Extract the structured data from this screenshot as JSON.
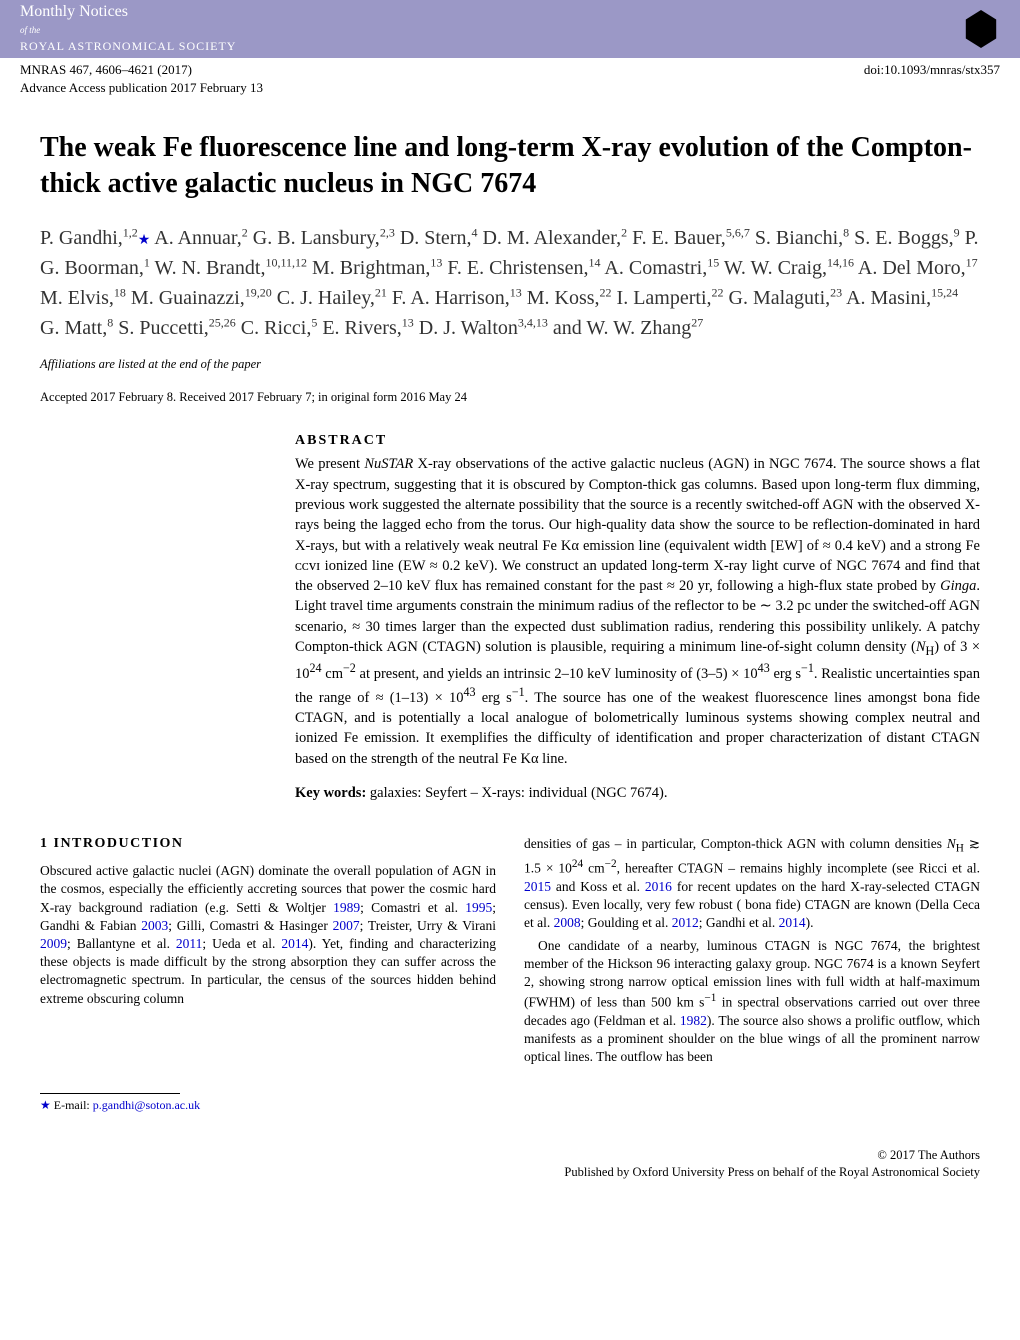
{
  "header": {
    "journal_main": "Monthly Notices",
    "journal_of": "of the",
    "journal_sub": "ROYAL ASTRONOMICAL SOCIETY",
    "pub_left": "MNRAS 467, 4606–4621 (2017)",
    "pub_doi": "doi:10.1093/mnras/stx357",
    "advance": "Advance Access publication 2017 February 13"
  },
  "title": "The weak Fe fluorescence line and long-term X-ray evolution of the Compton-thick active galactic nucleus in NGC 7674",
  "authors_html": "P. Gandhi,<sup>1,2</sup><span class='star'>★</span> A. Annuar,<sup>2</sup> G. B. Lansbury,<sup>2,3</sup> D. Stern,<sup>4</sup> D. M. Alexander,<sup>2</sup> F. E. Bauer,<sup>5,6,7</sup> S. Bianchi,<sup>8</sup> S. E. Boggs,<sup>9</sup> P. G. Boorman,<sup>1</sup> W. N. Brandt,<sup>10,11,12</sup> M. Brightman,<sup>13</sup> F. E. Christensen,<sup>14</sup> A. Comastri,<sup>15</sup> W. W. Craig,<sup>14,16</sup> A. Del Moro,<sup>17</sup> M. Elvis,<sup>18</sup> M. Guainazzi,<sup>19,20</sup> C. J. Hailey,<sup>21</sup> F. A. Harrison,<sup>13</sup> M. Koss,<sup>22</sup> I. Lamperti,<sup>22</sup> G. Malaguti,<sup>23</sup> A. Masini,<sup>15,24</sup> G. Matt,<sup>8</sup> S. Puccetti,<sup>25,26</sup> C. Ricci,<sup>5</sup> E. Rivers,<sup>13</sup> D. J. Walton<sup>3,4,13</sup> and W. W. Zhang<sup>27</sup>",
  "affil_note": "Affiliations are listed at the end of the paper",
  "accepted": "Accepted 2017 February 8. Received 2017 February 7; in original form 2016 May 24",
  "abstract": {
    "heading": "ABSTRACT",
    "body": "We present <i>NuSTAR</i> X-ray observations of the active galactic nucleus (AGN) in NGC 7674. The source shows a flat X-ray spectrum, suggesting that it is obscured by Compton-thick gas columns. Based upon long-term flux dimming, previous work suggested the alternate possibility that the source is a recently switched-off AGN with the observed X-rays being the lagged echo from the torus. Our high-quality data show the source to be reflection-dominated in hard X-rays, but with a relatively weak neutral Fe Kα emission line (equivalent width [EW] of ≈ 0.4 keV) and a strong Fe ᴄᴄᴠɪ ionized line (EW ≈ 0.2 keV). We construct an updated long-term X-ray light curve of NGC 7674 and find that the observed 2–10 keV flux has remained constant for the past ≈ 20 yr, following a high-flux state probed by <i>Ginga</i>. Light travel time arguments constrain the minimum radius of the reflector to be ∼ 3.2 pc under the switched-off AGN scenario, ≈ 30 times larger than the expected dust sublimation radius, rendering this possibility unlikely. A patchy Compton-thick AGN (CTAGN) solution is plausible, requiring a minimum line-of-sight column density (<i>N</i><sub>H</sub>) of 3 × 10<sup>24</sup> cm<sup>−2</sup> at present, and yields an intrinsic 2–10 keV luminosity of (3–5) × 10<sup>43</sup> erg s<sup>−1</sup>. Realistic uncertainties span the range of ≈ (1–13) × 10<sup>43</sup> erg s<sup>−1</sup>. The source has one of the weakest fluorescence lines amongst bona fide CTAGN, and is potentially a local analogue of bolometrically luminous systems showing complex neutral and ionized Fe emission. It exemplifies the difficulty of identification and proper characterization of distant CTAGN based on the strength of the neutral Fe Kα line.",
    "keywords_label": "Key words:",
    "keywords": "galaxies: Seyfert – X-rays: individual (NGC 7674)."
  },
  "section1": {
    "heading": "1 INTRODUCTION",
    "left_p1": "Obscured active galactic nuclei (AGN) dominate the overall population of AGN in the cosmos, especially the efficiently accreting sources that power the cosmic hard X-ray background radiation (e.g. Setti & Woltjer <a href='#'>1989</a>; Comastri et al. <a href='#'>1995</a>; Gandhi & Fabian <a href='#'>2003</a>; Gilli, Comastri & Hasinger <a href='#'>2007</a>; Treister, Urry & Virani <a href='#'>2009</a>; Ballantyne et al. <a href='#'>2011</a>; Ueda et al. <a href='#'>2014</a>). Yet, finding and characterizing these objects is made difficult by the strong absorption they can suffer across the electromagnetic spectrum. In particular, the census of the sources hidden behind extreme obscuring column",
    "right_p1": "densities of gas – in particular, Compton-thick AGN with column densities <i>N</i><sub>H</sub> ≳ 1.5 × 10<sup>24</sup> cm<sup>−2</sup>, hereafter CTAGN – remains highly incomplete (see Ricci et al. <a href='#'>2015</a> and Koss et al. <a href='#'>2016</a> for recent updates on the hard X-ray-selected CTAGN census). Even locally, very few robust ( bona fide) CTAGN are known (Della Ceca et al. <a href='#'>2008</a>; Goulding et al. <a href='#'>2012</a>; Gandhi et al. <a href='#'>2014</a>).",
    "right_p2": "One candidate of a nearby, luminous CTAGN is NGC 7674, the brightest member of the Hickson 96 interacting galaxy group. NGC 7674 is a known Seyfert 2, showing strong narrow optical emission lines with full width at half-maximum (FWHM) of less than 500 km s<sup>−1</sup> in spectral observations carried out over three decades ago (Feldman et al. <a href='#'>1982</a>). The source also shows a prolific outflow, which manifests as a prominent shoulder on the blue wings of all the prominent narrow optical lines. The outflow has been"
  },
  "footnote": {
    "star": "★",
    "text": "E-mail:",
    "email": "p.gandhi@soton.ac.uk"
  },
  "copyright": {
    "line1": "© 2017 The Authors",
    "line2": "Published by Oxford University Press on behalf of the Royal Astronomical Society"
  }
}
